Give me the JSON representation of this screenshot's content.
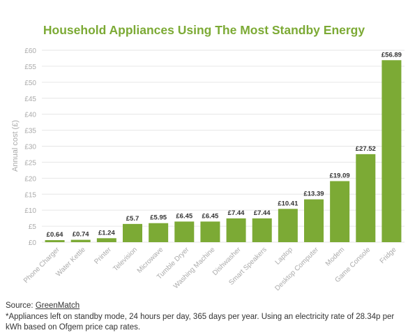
{
  "chart_data": {
    "type": "bar",
    "title": "Household Appliances Using The Most Standby Energy",
    "ylabel": "Annual cost (£)",
    "xlabel": "",
    "ylim": [
      0,
      60
    ],
    "yticks": [
      "£0",
      "£5",
      "£10",
      "£15",
      "£20",
      "£25",
      "£30",
      "£35",
      "£40",
      "£45",
      "£50",
      "£55",
      "£60"
    ],
    "grid": true,
    "categories": [
      "Phone Charger",
      "Water Kettle",
      "Printer",
      "Television",
      "Microwave",
      "Tumble Dryer",
      "Washing Machine",
      "Dishwasher",
      "Smart Speakers",
      "Laptop",
      "Desktop Computer",
      "Modem",
      "Game Console",
      "Fridge"
    ],
    "values": [
      0.64,
      0.74,
      1.24,
      5.7,
      5.95,
      6.45,
      6.45,
      7.44,
      7.44,
      10.41,
      13.39,
      19.09,
      27.52,
      56.89
    ],
    "data_labels": [
      "£0.64",
      "£0.74",
      "£1.24",
      "£5.7",
      "£5.95",
      "£6.45",
      "£6.45",
      "£7.44",
      "£7.44",
      "£10.41",
      "£13.39",
      "£19.09",
      "£27.52",
      "£56.89"
    ],
    "colors": {
      "bar": "#7caa35",
      "title": "#7caa35",
      "axis_text": "#aaaaaa",
      "grid": "#e6e6e6"
    }
  },
  "source": {
    "prefix": "Source: ",
    "link_text": "GreenMatch"
  },
  "footnote": "*Appliances left on standby mode, 24 hours per day, 365 days per year. Using an electricity rate of 28.34p per kWh based on Ofgem price cap rates."
}
